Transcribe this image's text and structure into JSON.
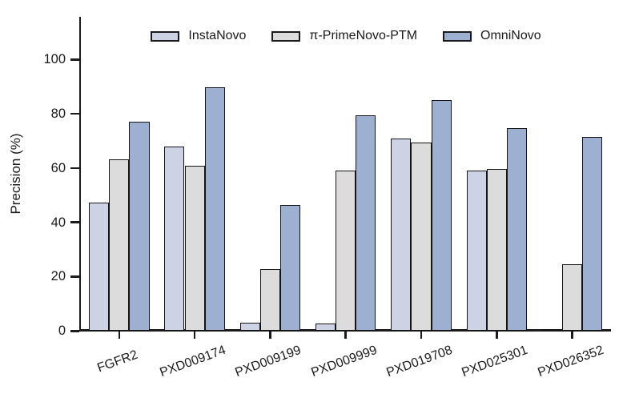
{
  "chart_data": {
    "type": "bar",
    "title": "",
    "xlabel": "",
    "ylabel": "Precision (%)",
    "ylim": [
      0,
      115
    ],
    "yticks": [
      0,
      20,
      40,
      60,
      80,
      100
    ],
    "grid": false,
    "legend_position": "top",
    "bar_edge_color": "#141414",
    "categories": [
      "FGFR2",
      "PXD009174",
      "PXD009199",
      "PXD009999",
      "PXD019708",
      "PXD025301",
      "PXD026352"
    ],
    "series": [
      {
        "name": "InstaNovo",
        "color": "#cdd2e4",
        "values": [
          47.4,
          68.0,
          3.0,
          2.8,
          70.8,
          59.2,
          0.6
        ]
      },
      {
        "name": "π-PrimeNovo-PTM",
        "color": "#dcdcdc",
        "values": [
          63.3,
          61.0,
          22.8,
          59.0,
          69.5,
          59.6,
          24.6
        ]
      },
      {
        "name": "OmniNovo",
        "color": "#9eb0d2",
        "values": [
          77.2,
          89.7,
          46.4,
          79.5,
          85.0,
          74.7,
          71.6
        ]
      }
    ]
  }
}
